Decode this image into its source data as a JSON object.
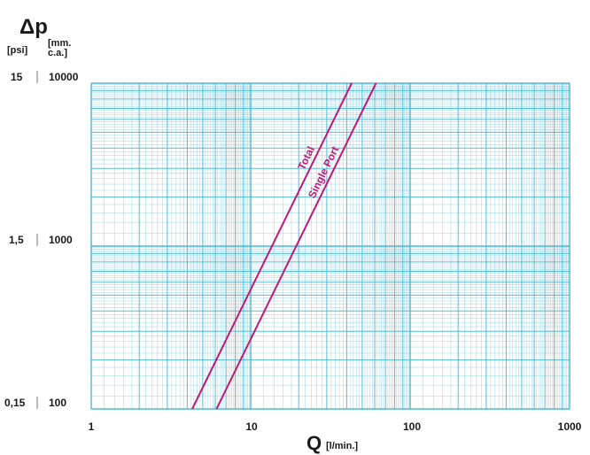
{
  "chart_data": {
    "type": "line",
    "title": "",
    "ylabel_symbol": "Δp",
    "y_unit_primary": "[psi]",
    "y_unit_secondary_line1": "[mm.",
    "y_unit_secondary_line2": "c.a.]",
    "xlabel_symbol": "Q",
    "x_unit": "[l/min.]",
    "x_scale": "log",
    "y_scale": "log",
    "xlim": [
      1,
      1000
    ],
    "ylim": [
      100,
      10000
    ],
    "x_ticks": [
      {
        "value": 1,
        "label": "1"
      },
      {
        "value": 10,
        "label": "10"
      },
      {
        "value": 100,
        "label": "100"
      },
      {
        "value": 1000,
        "label": "1000"
      }
    ],
    "y_ticks": [
      {
        "value": 10000,
        "label": "10000",
        "psi": "15"
      },
      {
        "value": 1000,
        "label": "1000",
        "psi": "1,5"
      },
      {
        "value": 100,
        "label": "100",
        "psi": "0,15"
      }
    ],
    "grid": true,
    "grid_color": "#4bb8d4",
    "series_color": "#c0187a",
    "series": [
      {
        "name": "Total",
        "x": [
          4.3,
          43
        ],
        "y": [
          100,
          10000
        ]
      },
      {
        "name": "Single Port",
        "x": [
          6.1,
          61
        ],
        "y": [
          100,
          10000
        ]
      }
    ]
  }
}
